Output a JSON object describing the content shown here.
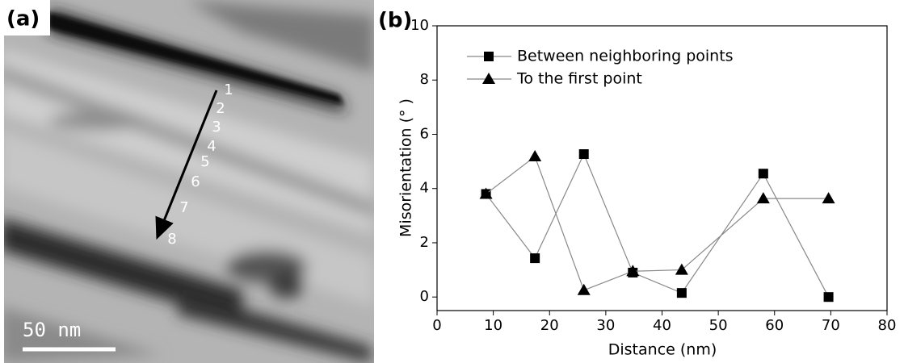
{
  "panel_a": {
    "label": "(a)",
    "points": [
      "1",
      "2",
      "3",
      "4",
      "5",
      "6",
      "7",
      "8"
    ],
    "scale_bar": "50 nm"
  },
  "chart_data": {
    "type": "line",
    "panel_label": "(b)",
    "x_label": "Distance (nm)",
    "y_label": "Misorientation (° )",
    "x": [
      8.7,
      17.4,
      26.1,
      34.8,
      43.5,
      58,
      69.6
    ],
    "series": [
      {
        "name": "Between neighboring points",
        "color": "#000000",
        "marker": "square",
        "values": [
          3.8,
          1.43,
          5.27,
          0.9,
          0.15,
          4.55,
          0.0
        ]
      },
      {
        "name": "To the first point",
        "color": "#000000",
        "marker": "triangle",
        "values": [
          3.8,
          5.18,
          0.25,
          0.95,
          1.0,
          3.63,
          3.63
        ]
      }
    ],
    "xlim": [
      0,
      80
    ],
    "xticks": [
      0,
      10,
      20,
      30,
      40,
      50,
      60,
      70,
      80
    ],
    "ylim": [
      -0.5,
      10
    ],
    "yticks": [
      0,
      2,
      4,
      6,
      8,
      10
    ],
    "line_color": "#888888",
    "legend": "upper left"
  }
}
